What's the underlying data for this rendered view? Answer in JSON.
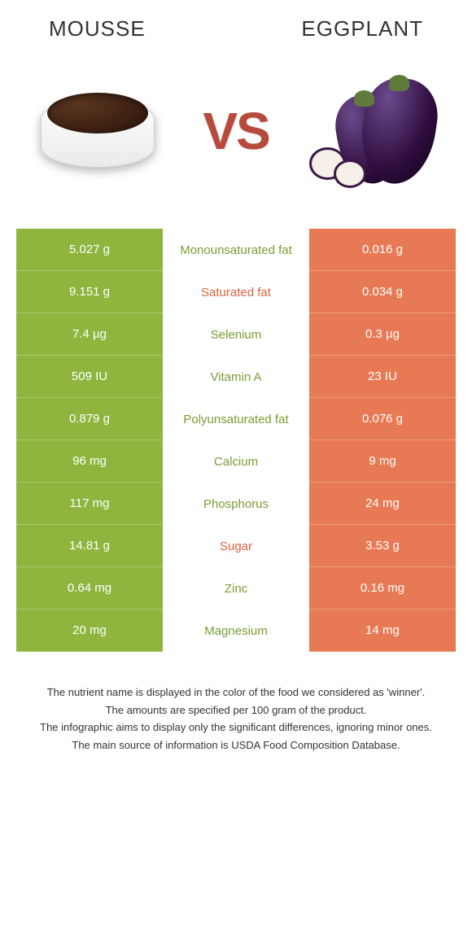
{
  "header": {
    "left_title": "MOUSSE",
    "right_title": "EGGPLANT"
  },
  "vs_label": "VS",
  "colors": {
    "left_bg": "#8fb53e",
    "right_bg": "#e77a54",
    "left_text": "#7a9c33",
    "right_text": "#d9633f"
  },
  "rows": [
    {
      "left": "5.027 g",
      "label": "Monounsaturated fat",
      "right": "0.016 g",
      "winner": "left"
    },
    {
      "left": "9.151 g",
      "label": "Saturated fat",
      "right": "0.034 g",
      "winner": "right"
    },
    {
      "left": "7.4 µg",
      "label": "Selenium",
      "right": "0.3 µg",
      "winner": "left"
    },
    {
      "left": "509 IU",
      "label": "Vitamin A",
      "right": "23 IU",
      "winner": "left"
    },
    {
      "left": "0.879 g",
      "label": "Polyunsaturated fat",
      "right": "0.076 g",
      "winner": "left"
    },
    {
      "left": "96 mg",
      "label": "Calcium",
      "right": "9 mg",
      "winner": "left"
    },
    {
      "left": "117 mg",
      "label": "Phosphorus",
      "right": "24 mg",
      "winner": "left"
    },
    {
      "left": "14.81 g",
      "label": "Sugar",
      "right": "3.53 g",
      "winner": "right"
    },
    {
      "left": "0.64 mg",
      "label": "Zinc",
      "right": "0.16 mg",
      "winner": "left"
    },
    {
      "left": "20 mg",
      "label": "Magnesium",
      "right": "14 mg",
      "winner": "left"
    }
  ],
  "footer": {
    "line1": "The nutrient name is displayed in the color of the food we considered as 'winner'.",
    "line2": "The amounts are specified per 100 gram of the product.",
    "line3": "The infographic aims to display only the significant differences, ignoring minor ones.",
    "line4": "The main source of information is USDA Food Composition Database."
  }
}
